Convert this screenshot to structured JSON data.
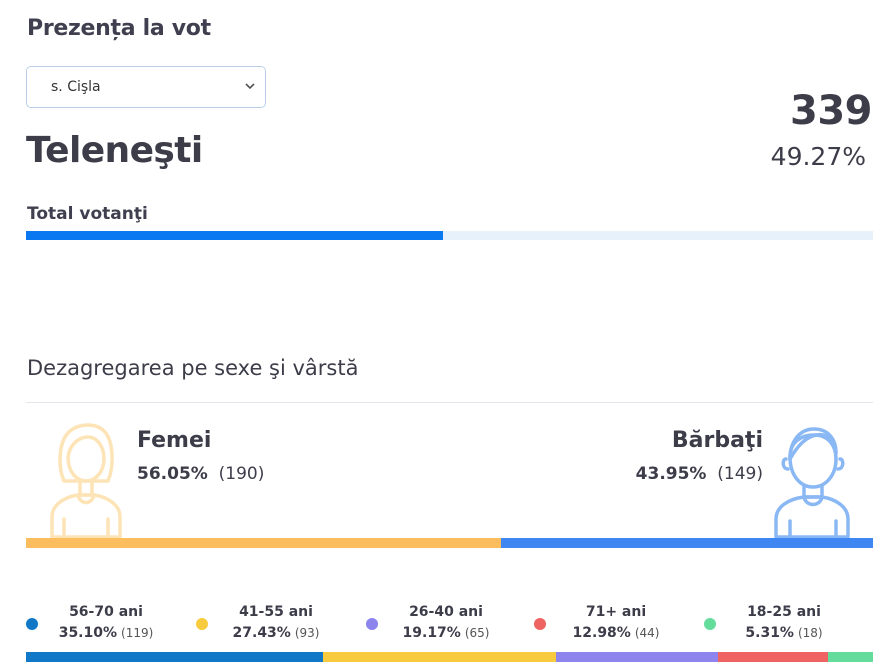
{
  "header": {
    "title": "Prezența la vot"
  },
  "location_select": {
    "selected": "s. Cişla"
  },
  "district": {
    "name": "Teleneşti"
  },
  "turnout": {
    "count": "339",
    "percent_label": "49.27%",
    "percent": 49.27
  },
  "total": {
    "label": "Total votanţi"
  },
  "colors": {
    "turnout_fill": "#0a78f0",
    "turnout_track": "#e7f1fb",
    "female": "#fbbd5e",
    "male": "#3e86f2",
    "female_icon": "#fde4b6",
    "male_icon": "#8ab8f4"
  },
  "breakdown": {
    "title": "Dezagregarea pe sexe şi vârstă",
    "female": {
      "label": "Femei",
      "percent_label": "56.05%",
      "count": "(190)",
      "percent": 56.05,
      "icon": "female-person-icon"
    },
    "male": {
      "label": "Bărbaţi",
      "percent_label": "43.95%",
      "count": "(149)",
      "percent": 43.95,
      "icon": "male-person-icon"
    }
  },
  "age_groups": [
    {
      "label": "56-70 ani",
      "percent_label": "35.10%",
      "count": "(119)",
      "percent": 35.1,
      "color": "#1178c7"
    },
    {
      "label": "41-55 ani",
      "percent_label": "27.43%",
      "count": "(93)",
      "percent": 27.43,
      "color": "#f7cb3d"
    },
    {
      "label": "26-40 ani",
      "percent_label": "19.17%",
      "count": "(65)",
      "percent": 19.17,
      "color": "#8d84ee"
    },
    {
      "label": "71+ ani",
      "percent_label": "12.98%",
      "count": "(44)",
      "percent": 12.98,
      "color": "#f06363"
    },
    {
      "label": "18-25 ani",
      "percent_label": "5.31%",
      "count": "(18)",
      "percent": 5.31,
      "color": "#63dc9c"
    }
  ]
}
